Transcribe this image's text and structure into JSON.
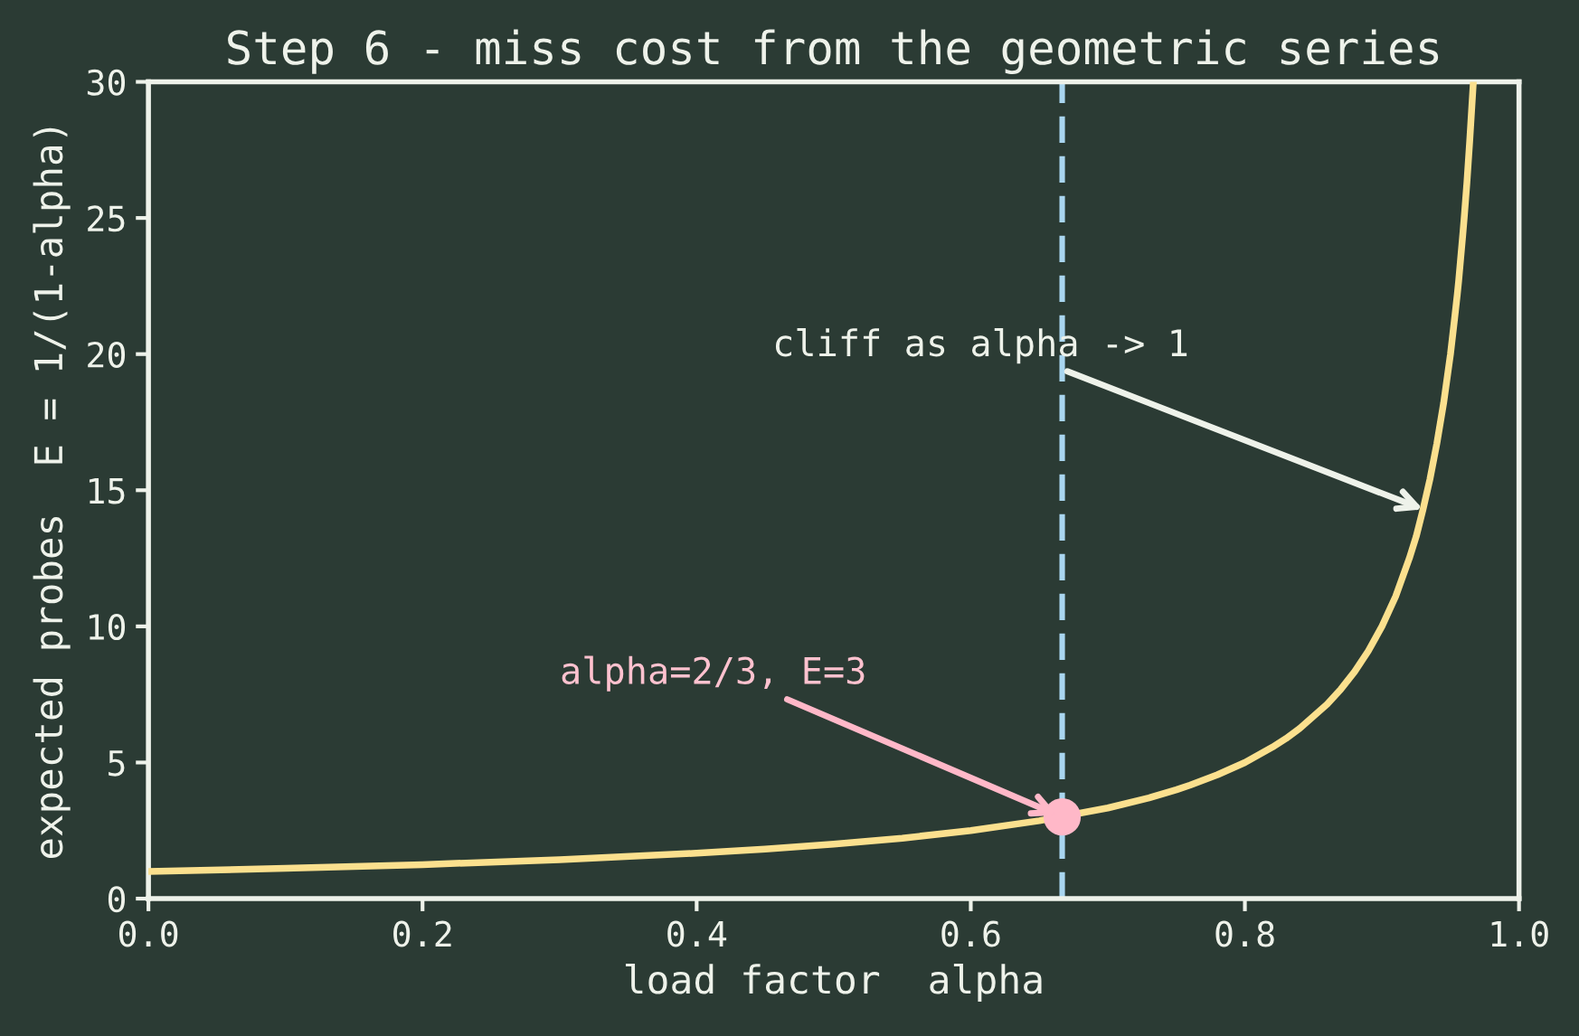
{
  "chart_data": {
    "type": "line",
    "title": "Step 6 - miss cost from the geometric series",
    "xlabel": "load factor  alpha",
    "ylabel": "expected probes  E = 1/(1-alpha)",
    "series": [
      {
        "color": "#fbe08e",
        "x": [
          0,
          0.1,
          0.2,
          0.3,
          0.4,
          0.45,
          0.5,
          0.55,
          0.6,
          0.65,
          0.7,
          0.73,
          0.75,
          0.76,
          0.78,
          0.8,
          0.82,
          0.83,
          0.84,
          0.86,
          0.87,
          0.88,
          0.89,
          0.9,
          0.91,
          0.92,
          0.925,
          0.93,
          0.935,
          0.94,
          0.945,
          0.95,
          0.953,
          0.955,
          0.956,
          0.959,
          0.96,
          0.962,
          0.964,
          0.9667
        ],
        "values": [
          1,
          1.11,
          1.25,
          1.43,
          1.67,
          1.82,
          2,
          2.22,
          2.5,
          2.86,
          3.33,
          3.7,
          4,
          4.17,
          4.55,
          5,
          5.56,
          5.88,
          6.25,
          7.14,
          7.69,
          8.33,
          9.09,
          10,
          11.1,
          12.5,
          13.3,
          14.3,
          15.4,
          16.7,
          18.2,
          20,
          21.3,
          22.2,
          22.7,
          24.4,
          25,
          26.3,
          27.8,
          30
        ]
      },
      {
        "type": "scatter",
        "color": "#ffb8c8",
        "marker": "circle",
        "x": [
          0.6667
        ],
        "values": [
          3
        ]
      }
    ],
    "ref_lines": [
      {
        "axis": "x",
        "value": 0.6667,
        "color": "#a9d6f0",
        "line_style": "dashed"
      }
    ],
    "annotations": [
      {
        "text": "cliff as alpha -> 1",
        "x": 0.93,
        "y": 14.3
      },
      {
        "text": "alpha=2/3, E=3",
        "x": 0.6667,
        "y": 3
      }
    ],
    "xlim": [
      0,
      1
    ],
    "ylim": [
      0,
      30
    ],
    "xticks": [
      {
        "value": 0,
        "label": "0.0"
      },
      0.2,
      0.4,
      0.6,
      0.8,
      {
        "value": 1,
        "label": "1.0"
      }
    ],
    "yticks": [
      0,
      5,
      10,
      15,
      20,
      25,
      30
    ],
    "grid": false,
    "legend": false
  }
}
